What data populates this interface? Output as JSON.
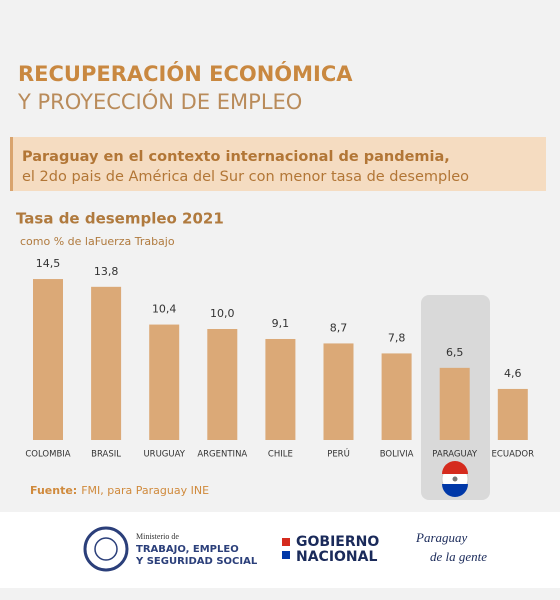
{
  "header": {
    "title": "RECUPERACIÓN ECONÓMICA",
    "subtitle": "Y PROYECCIÓN DE EMPLEO"
  },
  "banner": {
    "line1": "Paraguay en el contexto internacional de pandemia,",
    "line2": "el 2do pais de América del Sur con menor tasa de desempleo"
  },
  "chart_data": {
    "type": "bar",
    "title": "Tasa de desempleo 2021",
    "subtitle": "como % de laFuerza Trabajo",
    "categories": [
      "COLOMBIA",
      "BRASIL",
      "URUGUAY",
      "ARGENTINA",
      "CHILE",
      "PERÚ",
      "BOLIVIA",
      "PARAGUAY",
      "ECUADOR"
    ],
    "values": [
      14.5,
      13.8,
      10.4,
      10.0,
      9.1,
      8.7,
      7.8,
      6.5,
      4.6
    ],
    "value_labels": [
      "14,5",
      "13,8",
      "10,4",
      "10,0",
      "9,1",
      "8,7",
      "7,8",
      "6,5",
      "4,6"
    ],
    "color": "#dba977"
  },
  "source": {
    "label": "Fuente:",
    "text": "FMI, para Paraguay INE"
  },
  "footer": {
    "ministry_small": "Ministerio de",
    "ministry_line1": "TRABAJO, EMPLEO",
    "ministry_line2": "Y SEGURIDAD SOCIAL",
    "gov_line1": "GOBIERNO",
    "gov_line2": "NACIONAL",
    "slogan_line1": "Paraguay",
    "slogan_line2": "de la gente"
  }
}
